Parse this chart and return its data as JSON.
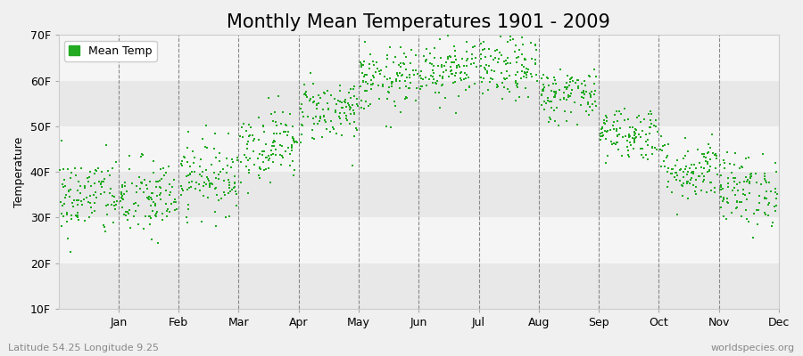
{
  "title": "Monthly Mean Temperatures 1901 - 2009",
  "ylabel": "Temperature",
  "xlabel_labels": [
    "Jan",
    "Feb",
    "Mar",
    "Apr",
    "May",
    "Jun",
    "Jul",
    "Aug",
    "Sep",
    "Oct",
    "Nov",
    "Dec"
  ],
  "legend_label": "Mean Temp",
  "dot_color": "#22aa22",
  "dot_marker": "s",
  "dot_size": 4,
  "ylim_min": 10,
  "ylim_max": 70,
  "yticks": [
    10,
    20,
    30,
    40,
    50,
    60,
    70
  ],
  "ytick_labels": [
    "10F",
    "20F",
    "30F",
    "40F",
    "50F",
    "60F",
    "70F"
  ],
  "background_color": "#f0f0f0",
  "band_color_light": "#f5f5f5",
  "band_color_dark": "#e8e8e8",
  "vline_color": "#888888",
  "footer_left": "Latitude 54.25 Longitude 9.25",
  "footer_right": "worldspecies.org",
  "title_fontsize": 15,
  "axis_fontsize": 9,
  "footer_fontsize": 8,
  "num_years": 109,
  "month_means_f": [
    34.5,
    34.0,
    39.0,
    46.0,
    53.5,
    60.0,
    63.0,
    62.5,
    57.0,
    48.5,
    40.5,
    36.0
  ],
  "month_stds_f": [
    4.5,
    4.5,
    4.0,
    4.0,
    3.5,
    3.5,
    3.5,
    3.5,
    3.0,
    3.0,
    3.5,
    4.0
  ],
  "random_seed": 42
}
